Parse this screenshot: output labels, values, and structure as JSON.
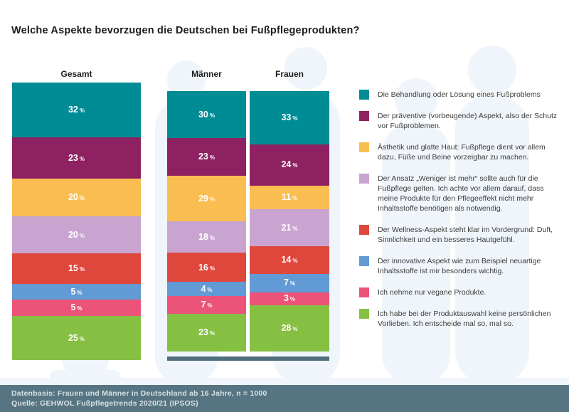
{
  "title": "Welche Aspekte bevorzugen die Deutschen bei Fußpflegeprodukten?",
  "footer": {
    "line1": "Datenbasis: Frauen und Männer in Deutschland ab 16 Jahre, n = 1000",
    "line2": "Quelle: GEHWOL Fußpflegetrends 2020/21 (IPSOS)"
  },
  "chart_data": {
    "type": "bar",
    "variant": "stacked-percentage-columns",
    "unit": "%",
    "legend_position": "right",
    "columns": [
      {
        "label": "Gesamt",
        "values": [
          32,
          23,
          20,
          20,
          15,
          5,
          5,
          25
        ]
      },
      {
        "label": "Männer",
        "values": [
          30,
          23,
          29,
          18,
          16,
          4,
          7,
          23
        ]
      },
      {
        "label": "Frauen",
        "values": [
          33,
          24,
          11,
          21,
          14,
          7,
          3,
          28
        ]
      }
    ],
    "categories": [
      {
        "label": "Die Behandlung oder Lösung eines Fußproblems",
        "color": "#008c95"
      },
      {
        "label": "Der präventive (vorbeugende) Aspekt, also der Schutz vor Fußproblemen.",
        "color": "#8e2161"
      },
      {
        "label": "Ästhetik und glatte Haut: Fußpflege dient vor allem dazu, Füße und Beine vorzeigbar zu machen.",
        "color": "#fabd51"
      },
      {
        "label": "Der Ansatz „Weniger ist mehr“ sollte auch für die Fußpflege gelten. Ich achte vor allem darauf, dass meine Produkte für den Pflegeeffekt nicht mehr Inhaltsstoffe benötigen als notwendig.",
        "color": "#c9a4d1"
      },
      {
        "label": "Der Wellness-Aspekt steht klar im Vordergrund: Duft, Sinnlichkeit und ein besseres Hautgefühl.",
        "color": "#e0473c"
      },
      {
        "label": "Der innovative Aspekt wie zum Beispiel neuartige Inhaltsstoffe ist mir besonders wichtig.",
        "color": "#619ad4"
      },
      {
        "label": "Ich nehme nur vegane Produkte.",
        "color": "#ec5378"
      },
      {
        "label": "Ich habe bei der Produktauswahl keine persönlichen Vorlieben. Ich entscheide mal so, mal so.",
        "color": "#85c043"
      }
    ]
  },
  "background": {
    "silhouette_color": "#eff5fa"
  }
}
